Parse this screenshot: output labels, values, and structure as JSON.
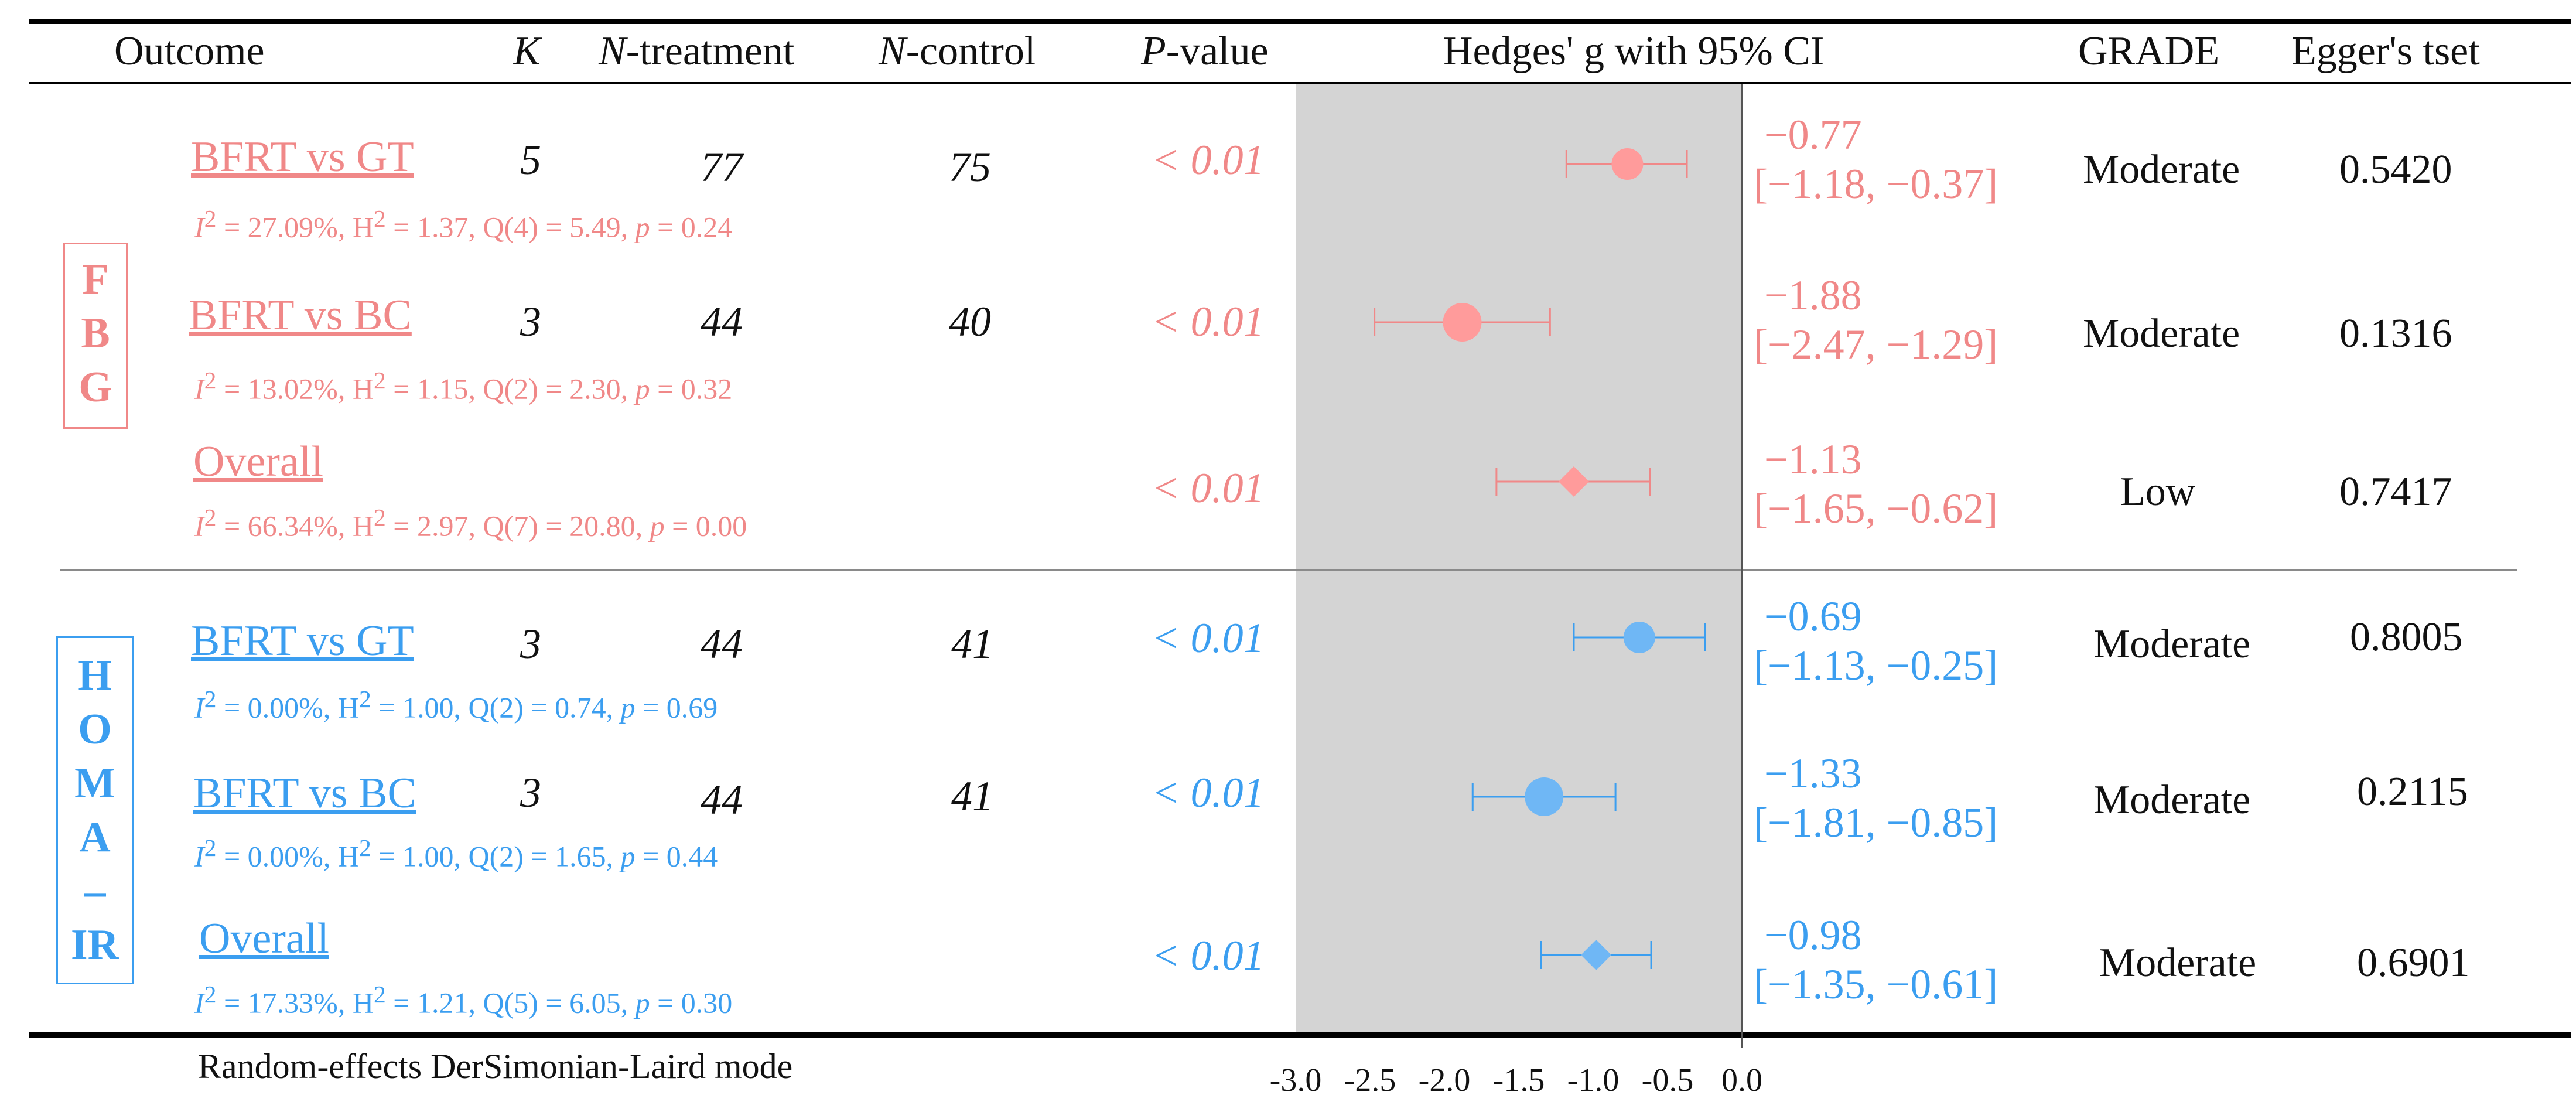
{
  "headers": {
    "outcome": "Outcome",
    "k": "K",
    "n_treatment_italic": "N",
    "n_treatment_rest": "-treatment",
    "n_control_italic": "N",
    "n_control_rest": "-control",
    "p_italic": "P",
    "p_rest": "-value",
    "effect": "Hedges' g with 95% CI",
    "grade": "GRADE",
    "egger": "Egger's tset"
  },
  "colors": {
    "fbg": "#f08888",
    "fbg_marker": "#ff9b9b",
    "homa": "#3b9ef0",
    "homa_marker": "#6fb7f5",
    "shade": "#d4d4d4"
  },
  "groups": [
    {
      "name": "FBG",
      "letters": [
        "F",
        "B",
        "G"
      ]
    },
    {
      "name": "HOMA-IR",
      "letters": [
        "H",
        "O",
        "M",
        "A",
        "–",
        "IR"
      ]
    }
  ],
  "rows": [
    {
      "label": "BFRT vs  GT",
      "stats": {
        "i2": "= 27.09%, H",
        "h2": "= 1.37, Q(4) = 5.49, ",
        "p": "p",
        "pv": " = 0.24"
      },
      "k": "5",
      "nt": "77",
      "nc": "75",
      "pvalue": "< 0.01",
      "ci_line1": "−0.77",
      "ci_line2": "[−1.18,  −0.37]",
      "grade": "Moderate",
      "egger": "0.5420"
    },
    {
      "label": "BFRT vs  BC",
      "stats": {
        "i2": "= 13.02%, H",
        "h2": "= 1.15, Q(2) = 2.30, ",
        "p": "p",
        "pv": " = 0.32"
      },
      "k": "3",
      "nt": "44",
      "nc": "40",
      "pvalue": "< 0.01",
      "ci_line1": "−1.88",
      "ci_line2": "[−2.47, −1.29]",
      "grade": "Moderate",
      "egger": "0.1316"
    },
    {
      "label": "Overall",
      "stats": {
        "i2": "= 66.34%, H",
        "h2": "= 2.97, Q(7) = 20.80, ",
        "p": "p",
        "pv": " = 0.00"
      },
      "k": "",
      "nt": "",
      "nc": "",
      "pvalue": "< 0.01",
      "ci_line1": "−1.13",
      "ci_line2": "[−1.65, −0.62]",
      "grade": "Low",
      "egger": "0.7417"
    },
    {
      "label": "BFRT vs  GT",
      "stats": {
        "i2": "= 0.00%, H",
        "h2": "= 1.00, Q(2) = 0.74, ",
        "p": "p",
        "pv": " = 0.69"
      },
      "k": "3",
      "nt": "44",
      "nc": "41",
      "pvalue": "< 0.01",
      "ci_line1": "−0.69",
      "ci_line2": "[−1.13, −0.25]",
      "grade": "Moderate",
      "egger": "0.8005"
    },
    {
      "label": "BFRT vs  BC",
      "stats": {
        "i2": "= 0.00%, H",
        "h2": "= 1.00, Q(2) = 1.65, ",
        "p": "p",
        "pv": " = 0.44"
      },
      "k": "3",
      "nt": "44",
      "nc": "41",
      "pvalue": "< 0.01",
      "ci_line1": "−1.33",
      "ci_line2": "[−1.81, −0.85]",
      "grade": "Moderate",
      "egger": "0.2115"
    },
    {
      "label": "Overall",
      "stats": {
        "i2": "= 17.33%, H",
        "h2": "= 1.21, Q(5) = 6.05, ",
        "p": "p",
        "pv": " = 0.30"
      },
      "k": "",
      "nt": "",
      "nc": "",
      "pvalue": "< 0.01",
      "ci_line1": "−0.98",
      "ci_line2": "[−1.35, −0.61]",
      "grade": "Moderate",
      "egger": "0.6901"
    }
  ],
  "footer": "Random-effects DerSimonian-Laird mode",
  "chart_data": {
    "type": "forest",
    "title": "Hedges' g with 95% CI",
    "xlim": [
      -3.0,
      0.0
    ],
    "x_ticks": [
      "-3.0",
      "-2.5",
      "-2.0",
      "-1.5",
      "-1.0",
      "-0.5",
      "0.0"
    ],
    "tick_values": [
      -3.0,
      -2.5,
      -2.0,
      -1.5,
      -1.0,
      -0.5,
      0.0
    ],
    "series": [
      {
        "name": "FBG",
        "points": [
          {
            "label": "BFRT vs GT",
            "est": -0.77,
            "lo": -1.18,
            "hi": -0.37,
            "marker": "circle",
            "size": "small"
          },
          {
            "label": "BFRT vs BC",
            "est": -1.88,
            "lo": -2.47,
            "hi": -1.29,
            "marker": "circle",
            "size": "large"
          },
          {
            "label": "Overall",
            "est": -1.13,
            "lo": -1.65,
            "hi": -0.62,
            "marker": "diamond",
            "size": "medium"
          }
        ]
      },
      {
        "name": "HOMA-IR",
        "points": [
          {
            "label": "BFRT vs GT",
            "est": -0.69,
            "lo": -1.13,
            "hi": -0.25,
            "marker": "circle",
            "size": "small"
          },
          {
            "label": "BFRT vs BC",
            "est": -1.33,
            "lo": -1.81,
            "hi": -0.85,
            "marker": "circle",
            "size": "large"
          },
          {
            "label": "Overall",
            "est": -0.98,
            "lo": -1.35,
            "hi": -0.61,
            "marker": "diamond",
            "size": "medium"
          }
        ]
      }
    ]
  }
}
